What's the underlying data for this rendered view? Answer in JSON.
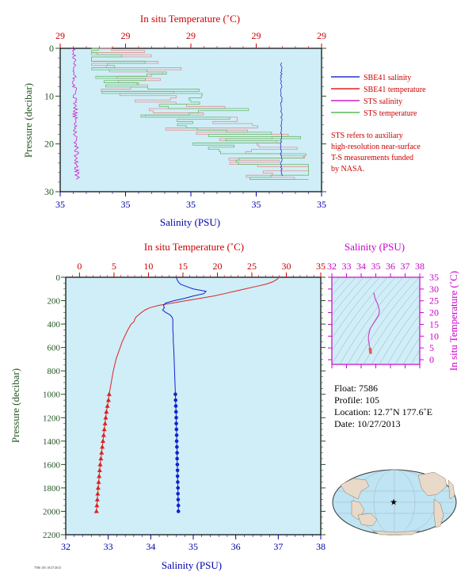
{
  "chart_data": [
    {
      "type": "line",
      "panel": "top-profile",
      "top_axis_label": "In situ Temperature (˚C)",
      "bottom_axis_label": "Salinity (PSU)",
      "ylabel": "Pressure (decibar)",
      "top_tick_labels": [
        "29",
        "29",
        "29",
        "29",
        "29"
      ],
      "bottom_tick_labels": [
        "35",
        "35",
        "35",
        "35",
        "35"
      ],
      "y_tick_labels": [
        "0",
        "10",
        "20",
        "30"
      ],
      "ylim": [
        0,
        30
      ],
      "legend": [
        {
          "label": "SBE41 salinity",
          "color": "#2233cc"
        },
        {
          "label": "SBE41 temperature",
          "color": "#dd2222"
        },
        {
          "label": "STS salinity",
          "color": "#cc22cc"
        },
        {
          "label": "STS temperature",
          "color": "#55bb55"
        }
      ],
      "legend_placement": "right",
      "note": [
        "STS refers to auxiliary",
        "high-resolution near-surface",
        "T-S measurements funded",
        "by NASA."
      ],
      "sbe41_salinity_x_frac": 0.846,
      "sbe41_salinity_pressure": [
        3,
        27
      ],
      "sts_salinity_x_frac": 0.05,
      "sts_salinity_pressure": [
        0,
        27.5
      ],
      "sts_temperature_x_frac_range": [
        0.12,
        0.95
      ],
      "grid": false,
      "background": "#cfeef8"
    },
    {
      "type": "line",
      "panel": "main-profile",
      "top_axis_label": "In situ Temperature (˚C)",
      "bottom_axis_label": "Salinity (PSU)",
      "ylabel": "Pressure (decibar)",
      "temperature_ticks": [
        0,
        5,
        10,
        15,
        20,
        25,
        30,
        35
      ],
      "salinity_ticks": [
        32,
        33,
        34,
        35,
        36,
        37,
        38
      ],
      "pressure_ticks": [
        0,
        200,
        400,
        600,
        800,
        1000,
        1200,
        1400,
        1600,
        1800,
        2000,
        2200
      ],
      "xlim_temperature": [
        -2,
        35
      ],
      "xlim_salinity": [
        32,
        38
      ],
      "ylim": [
        0,
        2200
      ],
      "temperature_profile": {
        "pressure": [
          0,
          10,
          20,
          40,
          60,
          80,
          100,
          120,
          140,
          160,
          180,
          200,
          220,
          240,
          260,
          280,
          300,
          320,
          340,
          360,
          380,
          400,
          450,
          500,
          550,
          600,
          650,
          700,
          800,
          900,
          1000
        ],
        "values": [
          28.8,
          28.8,
          28.6,
          28.0,
          27.0,
          25.5,
          24.0,
          22.5,
          21.0,
          19.5,
          17.5,
          15.5,
          13.5,
          11.5,
          10.2,
          9.5,
          9.0,
          8.6,
          8.2,
          8.0,
          7.9,
          7.5,
          7.0,
          6.6,
          6.2,
          5.9,
          5.6,
          5.3,
          4.9,
          4.6,
          4.3
        ]
      },
      "temperature_bottle": {
        "pressure": [
          1000,
          1050,
          1100,
          1150,
          1200,
          1250,
          1300,
          1350,
          1400,
          1450,
          1500,
          1550,
          1600,
          1650,
          1700,
          1750,
          1800,
          1850,
          1900,
          1950,
          2000
        ],
        "values": [
          4.3,
          4.2,
          4.05,
          3.9,
          3.8,
          3.7,
          3.6,
          3.5,
          3.4,
          3.3,
          3.2,
          3.1,
          3.0,
          2.92,
          2.85,
          2.78,
          2.7,
          2.64,
          2.58,
          2.52,
          2.46
        ]
      },
      "salinity_profile": {
        "pressure": [
          0,
          20,
          40,
          60,
          80,
          100,
          120,
          140,
          160,
          180,
          200,
          220,
          240,
          260,
          280,
          300,
          320,
          340,
          360,
          380,
          400,
          450,
          500,
          550,
          600,
          700,
          800,
          900,
          1000
        ],
        "values": [
          34.6,
          34.62,
          34.65,
          34.7,
          34.85,
          35.0,
          35.3,
          35.25,
          35.0,
          34.8,
          34.55,
          34.35,
          34.3,
          34.32,
          34.28,
          34.35,
          34.45,
          34.5,
          34.52,
          34.52,
          34.52,
          34.52,
          34.53,
          34.53,
          34.54,
          34.55,
          34.56,
          34.57,
          34.58
        ]
      },
      "salinity_bottle": {
        "pressure": [
          1000,
          1050,
          1100,
          1150,
          1200,
          1250,
          1300,
          1350,
          1400,
          1450,
          1500,
          1550,
          1600,
          1650,
          1700,
          1750,
          1800,
          1850,
          1900,
          1950,
          2000
        ],
        "values": [
          34.58,
          34.585,
          34.59,
          34.595,
          34.6,
          34.6,
          34.605,
          34.61,
          34.61,
          34.615,
          34.62,
          34.62,
          34.625,
          34.63,
          34.63,
          34.635,
          34.64,
          34.64,
          34.645,
          34.65,
          34.65
        ]
      },
      "temperature_color": "#dd2222",
      "salinity_color": "#1122cc",
      "grid": false,
      "background": "#cfeef8"
    },
    {
      "type": "scatter",
      "panel": "ts-diagram",
      "top_axis_label": "Salinity (PSU)",
      "right_axis_label": "In situ Temperature (˚C)",
      "salinity_ticks": [
        32,
        33,
        34,
        35,
        36,
        37,
        38
      ],
      "temperature_ticks": [
        0,
        5,
        10,
        15,
        20,
        25,
        30,
        35
      ],
      "xlim": [
        32,
        38
      ],
      "ylim": [
        -2,
        35
      ],
      "ts_curve": {
        "salinity": [
          34.85,
          34.9,
          34.95,
          35.1,
          35.25,
          35.2,
          34.9,
          34.6,
          34.5,
          34.5,
          34.55,
          34.55,
          34.6,
          34.62,
          34.65
        ],
        "temperature": [
          28.5,
          27.5,
          26,
          24,
          21,
          19,
          16,
          13,
          10,
          8,
          7,
          6,
          5,
          4.3,
          2.5
        ]
      },
      "curve_color": "#cc44cc",
      "deep_color": "#ee5555"
    }
  ],
  "float_info": {
    "float": "Float:  7586",
    "profile": "Profile:  105",
    "location": "Location:  12.7˚N  177.6˚E",
    "date": "Date:  10/27/2013"
  },
  "map": {
    "marker": "★",
    "marker_color": "#1111cc"
  },
  "footer_note": "7586 105 10/27/2013"
}
